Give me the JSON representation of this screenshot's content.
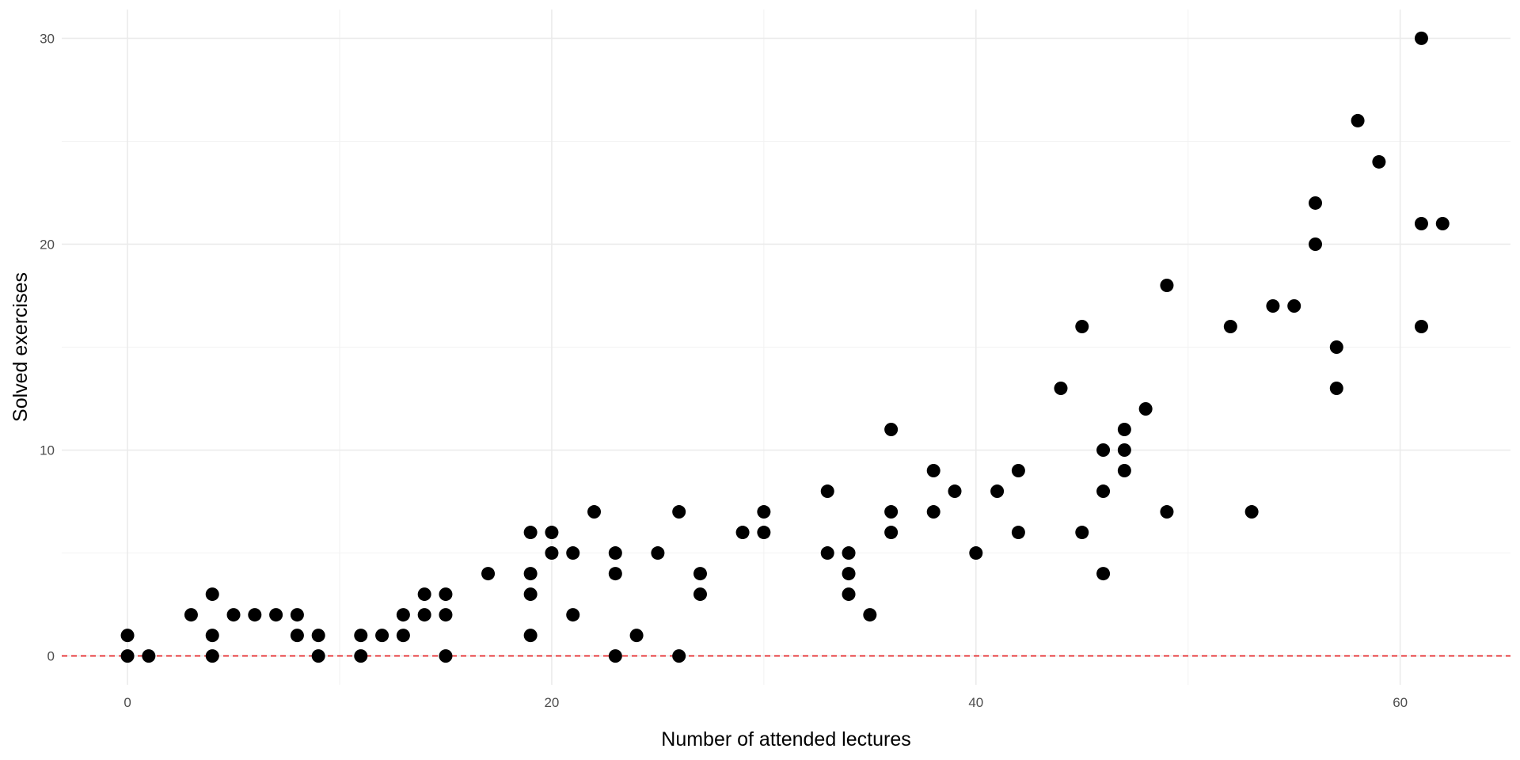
{
  "chart_data": {
    "type": "scatter",
    "title": "",
    "xlabel": "Number of attended lectures",
    "ylabel": "Solved exercises",
    "xlim": [
      -3.1,
      65.2
    ],
    "ylim": [
      -1.4,
      31.4
    ],
    "x_ticks": [
      0,
      20,
      40,
      60
    ],
    "y_ticks": [
      0,
      10,
      20,
      30
    ],
    "x_tick_labels": [
      "0",
      "20",
      "40",
      "60"
    ],
    "y_tick_labels": [
      "0",
      "10",
      "20",
      "30"
    ],
    "grid": true,
    "legend": "none",
    "reference_line": {
      "y": 0,
      "color": "#e41a1c",
      "style": "dashed"
    },
    "point_color": "#000000",
    "series": [
      {
        "x": [
          0,
          0,
          1,
          3,
          4,
          4,
          4,
          5,
          6,
          7,
          8,
          8,
          9,
          9,
          11,
          11,
          12,
          13,
          13,
          14,
          14,
          15,
          15,
          15,
          17,
          19,
          19,
          19,
          19,
          20,
          20,
          21,
          21,
          22,
          23,
          23,
          23,
          24,
          25,
          26,
          26,
          27,
          27,
          29,
          30,
          30,
          33,
          33,
          34,
          34,
          34,
          35,
          36,
          36,
          36,
          38,
          38,
          39,
          40,
          41,
          42,
          42,
          44,
          45,
          45,
          46,
          46,
          46,
          47,
          47,
          47,
          48,
          49,
          49,
          52,
          53,
          54,
          55,
          56,
          56,
          57,
          57,
          58,
          59,
          61,
          61,
          61,
          62
        ],
        "y": [
          1,
          0,
          0,
          2,
          3,
          1,
          0,
          2,
          2,
          2,
          2,
          1,
          1,
          0,
          1,
          0,
          1,
          2,
          1,
          3,
          2,
          3,
          2,
          0,
          4,
          6,
          4,
          3,
          1,
          6,
          5,
          5,
          2,
          7,
          5,
          4,
          0,
          1,
          5,
          7,
          0,
          4,
          3,
          6,
          7,
          6,
          8,
          5,
          5,
          4,
          3,
          2,
          11,
          7,
          6,
          9,
          7,
          8,
          5,
          8,
          9,
          6,
          13,
          16,
          6,
          10,
          8,
          4,
          11,
          10,
          9,
          12,
          18,
          7,
          16,
          7,
          17,
          17,
          22,
          20,
          15,
          13,
          26,
          24,
          30,
          21,
          16,
          21
        ]
      }
    ]
  }
}
